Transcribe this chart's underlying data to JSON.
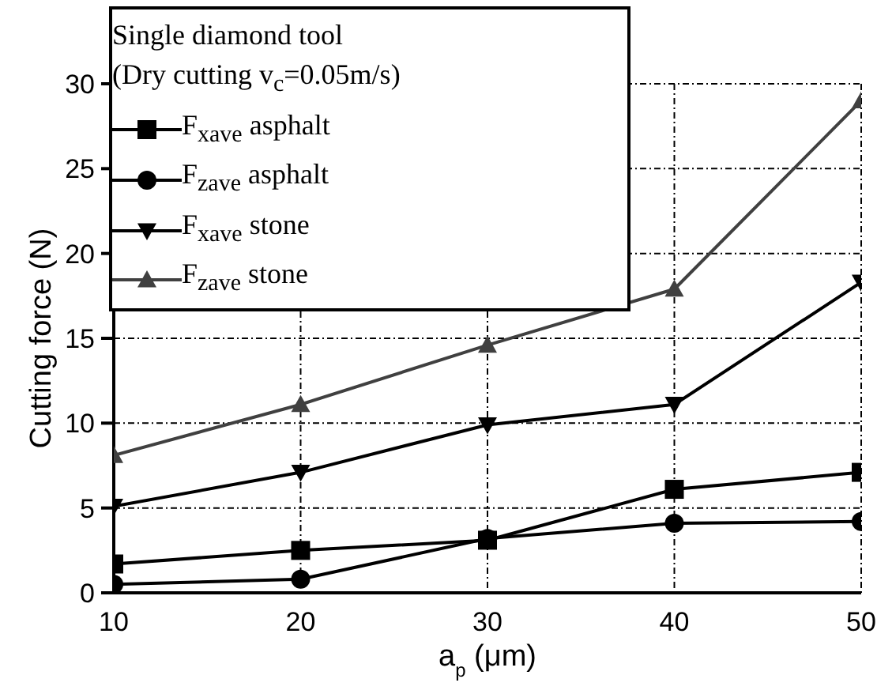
{
  "chart_data": {
    "type": "line",
    "xlabel": "a$_{p}$ (μm)",
    "ylabel": "Cutting force (N)",
    "legend_title": "Single diamond tool\n(Dry cutting v$_{c}$=0.05m/s)",
    "x": [
      10,
      20,
      30,
      40,
      50
    ],
    "xlim": [
      10,
      50
    ],
    "xticks": [
      10,
      20,
      30,
      40,
      50
    ],
    "ylim": [
      0,
      30
    ],
    "yticks": [
      0,
      5,
      10,
      15,
      20,
      25,
      30
    ],
    "grid": true,
    "legend": "top left",
    "series": [
      {
        "name": "F$_{xave}$ asphalt",
        "color": "#000000",
        "marker": "square",
        "values": [
          1.7,
          2.5,
          3.1,
          6.1,
          7.1
        ]
      },
      {
        "name": "F$_{zave}$ asphalt",
        "color": "#000000",
        "marker": "circle",
        "values": [
          0.5,
          0.8,
          3.2,
          4.1,
          4.2
        ]
      },
      {
        "name": "F$_{xave}$ stone",
        "color": "#000000",
        "marker": "triangle-down",
        "values": [
          5.1,
          7.1,
          9.9,
          11.1,
          18.3
        ]
      },
      {
        "name": "F$_{zave}$ stone",
        "color": "#404040",
        "marker": "triangle",
        "values": [
          8.1,
          11.1,
          14.6,
          17.9,
          29.0
        ]
      }
    ]
  }
}
